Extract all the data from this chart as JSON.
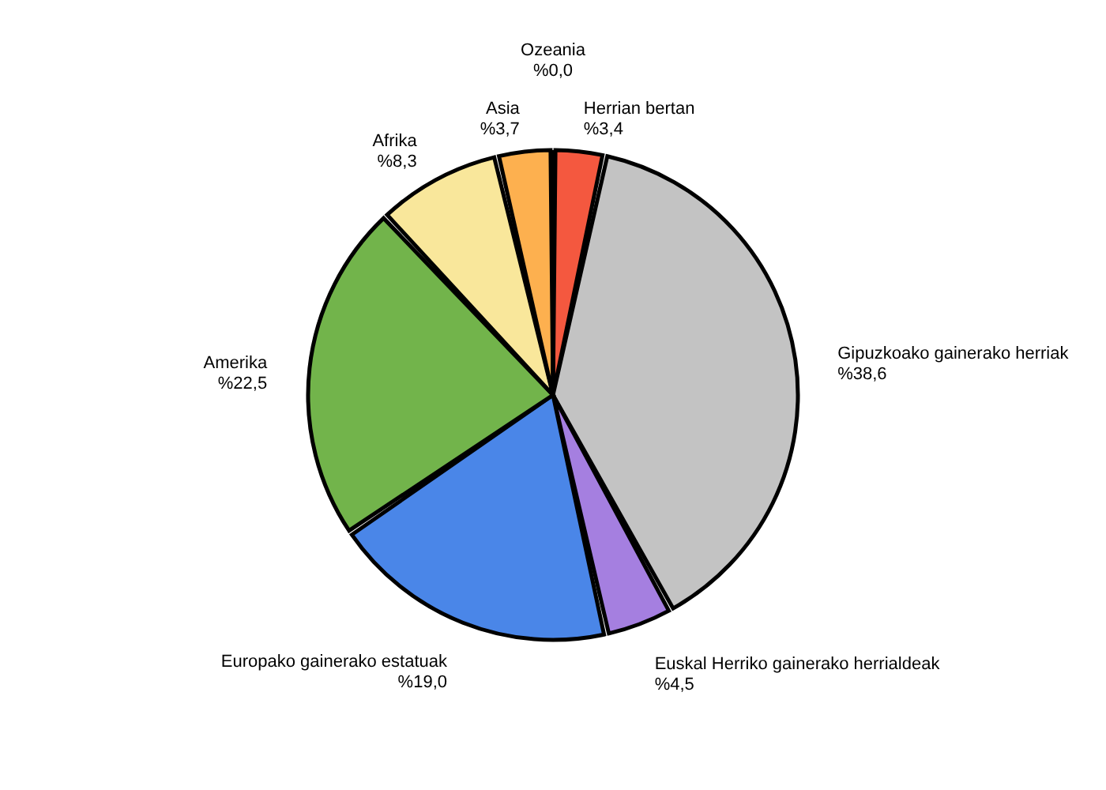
{
  "chart_data": {
    "type": "pie",
    "categories": [
      "Herrian bertan",
      "Gipuzkoako gainerako herriak",
      "Euskal Herriko gainerako herrialdeak",
      "Europako gainerako estatuak",
      "Amerika",
      "Afrika",
      "Asia",
      "Ozeania"
    ],
    "values": [
      3.4,
      38.6,
      4.5,
      19.0,
      22.5,
      8.3,
      3.7,
      0.0
    ],
    "value_labels": [
      "%3,4",
      "%38,6",
      "%4,5",
      "%19,0",
      "%22,5",
      "%8,3",
      "%3,7",
      "%0,0"
    ],
    "colors": [
      "#f4583f",
      "#c3c3c3",
      "#a57fe0",
      "#4a86e8",
      "#72b44b",
      "#f9e79b",
      "#fdb04f",
      "#8e7cc3"
    ],
    "legend": false
  }
}
